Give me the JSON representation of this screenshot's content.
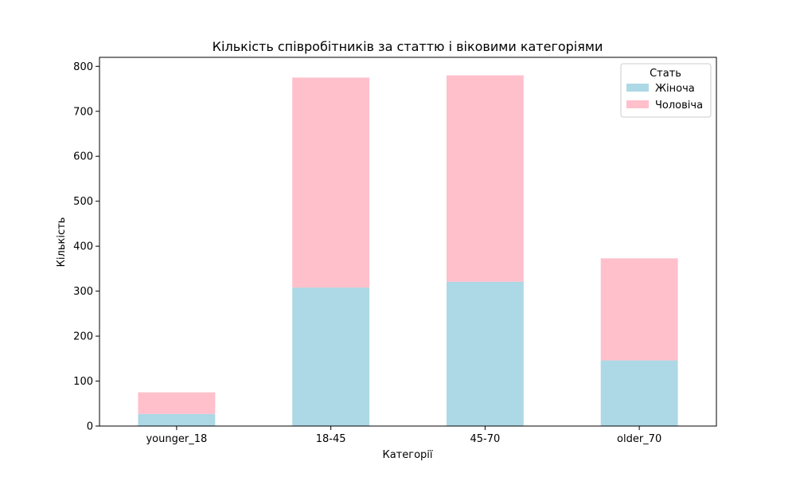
{
  "chart_data": {
    "type": "bar",
    "stacked": true,
    "title": "Кількість співробітників за статтю і віковими категоріями",
    "xlabel": "Категорії",
    "ylabel": "Кількість",
    "categories": [
      "younger_18",
      "18-45",
      "45-70",
      "older_70"
    ],
    "series": [
      {
        "name": "Жіноча",
        "values": [
          27,
          308,
          321,
          146
        ],
        "color": "#add8e6"
      },
      {
        "name": "Чоловіча",
        "values": [
          48,
          467,
          459,
          227
        ],
        "color": "#ffc0cb"
      }
    ],
    "ylim": [
      0,
      820
    ],
    "yticks": [
      0,
      100,
      200,
      300,
      400,
      500,
      600,
      700,
      800
    ],
    "grid": false,
    "legend": {
      "title": "Стать",
      "placement": "top-right"
    }
  }
}
